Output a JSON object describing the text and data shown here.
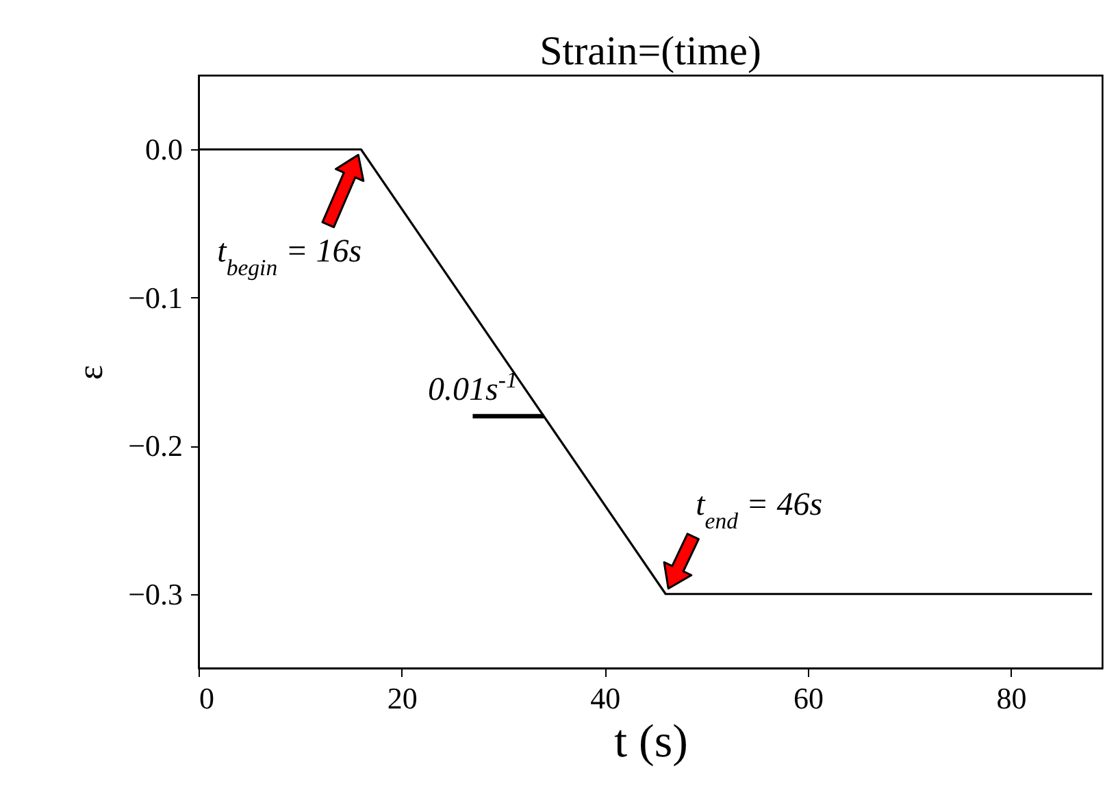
{
  "chart_data": {
    "type": "line",
    "title": "Strain=(time)",
    "xlabel": "t (s)",
    "ylabel": "ε",
    "xlim": [
      0,
      89
    ],
    "ylim": [
      -0.35,
      0.05
    ],
    "xticks": [
      0,
      20,
      40,
      60,
      80
    ],
    "yticks": [
      {
        "value": 0,
        "label": "0.0"
      },
      {
        "value": -0.1,
        "label": "−0.1"
      },
      {
        "value": -0.2,
        "label": "−0.2"
      },
      {
        "value": -0.3,
        "label": "−0.3"
      }
    ],
    "grid": false,
    "marker": "none",
    "line_style": "solid",
    "series": [
      {
        "color": "#000000",
        "x": [
          0,
          16,
          46,
          88
        ],
        "values": [
          0,
          0,
          -0.3,
          -0.3
        ]
      },
      {
        "color": "#000000",
        "x": [
          27,
          34
        ],
        "values": [
          -0.18,
          -0.18
        ]
      }
    ],
    "annotations": [
      {
        "text": "t$_{begin}$ = 16s",
        "x": 16,
        "y": 0
      },
      {
        "text": "t$_{end}$ = 46s",
        "x": 46,
        "y": -0.3
      },
      {
        "text": "0.01s$^{-1}$",
        "x": 27,
        "y": -0.18
      }
    ]
  }
}
